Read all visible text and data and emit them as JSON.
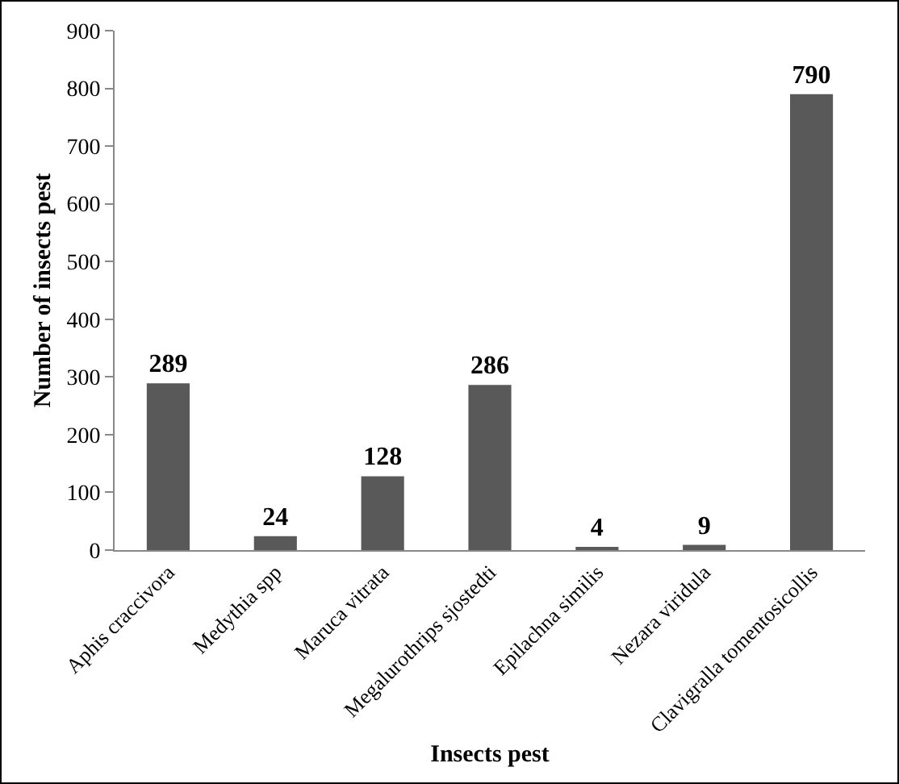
{
  "chart_data": {
    "type": "bar",
    "xlabel": "Insects pest",
    "ylabel": "Number of insects pest",
    "categories": [
      "Aphis craccivora",
      "Medythia spp",
      "Maruca vitrata",
      "Megalurothrips sjostedti",
      "Epilachna similis",
      "Nezara viridula",
      "Clavigralla tomentosicollis"
    ],
    "values": [
      289,
      24,
      128,
      286,
      4,
      9,
      790
    ],
    "color": "#595959",
    "ylim": [
      0,
      900
    ],
    "yticks": [
      0,
      100,
      200,
      300,
      400,
      500,
      600,
      700,
      800,
      900
    ],
    "grid": false,
    "legend": false,
    "data_labels": true
  }
}
